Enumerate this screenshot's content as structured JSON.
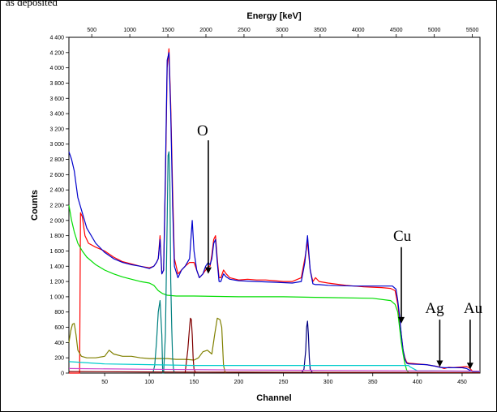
{
  "top_caption": "as deposited",
  "chart_data": {
    "type": "line",
    "xlabel": "Channel",
    "ylabel": "Counts",
    "x2label": "Energy [keV]",
    "xlim": [
      10,
      470
    ],
    "ylim": [
      0,
      4400
    ],
    "x2lim": [
      200,
      5600
    ],
    "x_ticks": [
      50,
      100,
      150,
      200,
      250,
      300,
      350,
      400,
      450
    ],
    "y_ticks": [
      0,
      200,
      400,
      600,
      800,
      1000,
      1200,
      1400,
      1600,
      1800,
      2000,
      2200,
      2400,
      2600,
      2800,
      3000,
      3200,
      3400,
      3600,
      3800,
      4000,
      4200,
      4400
    ],
    "x2_ticks": [
      500,
      1000,
      1500,
      2000,
      2500,
      3000,
      3500,
      4000,
      4500,
      5000,
      5500
    ],
    "grid": false,
    "series": [
      {
        "color": "#ff0000",
        "x": [
          10,
          22,
          23,
          25,
          28,
          32,
          40,
          50,
          60,
          70,
          80,
          90,
          100,
          105,
          108,
          110,
          112,
          114,
          116,
          118,
          120,
          122,
          124,
          126,
          128,
          132,
          136,
          140,
          145,
          148,
          150,
          153,
          156,
          160,
          163,
          166,
          168,
          170,
          172,
          174,
          176,
          178,
          180,
          183,
          186,
          190,
          200,
          210,
          220,
          230,
          240,
          250,
          260,
          270,
          274,
          277,
          280,
          283,
          286,
          290,
          300,
          320,
          340,
          360,
          370,
          375,
          378,
          380,
          382,
          384,
          386,
          388,
          390,
          400,
          410,
          420,
          425,
          430,
          435,
          440,
          445,
          450,
          455,
          458,
          462,
          470
        ],
        "y": [
          0,
          0,
          2100,
          2050,
          1800,
          1700,
          1650,
          1600,
          1520,
          1460,
          1430,
          1400,
          1380,
          1400,
          1450,
          1500,
          1800,
          1300,
          1350,
          2500,
          4000,
          4250,
          3500,
          2400,
          1500,
          1300,
          1350,
          1400,
          1450,
          1450,
          1450,
          1350,
          1250,
          1300,
          1350,
          1400,
          1400,
          1550,
          1750,
          1800,
          1500,
          1250,
          1250,
          1350,
          1300,
          1250,
          1220,
          1230,
          1220,
          1220,
          1210,
          1200,
          1200,
          1250,
          1500,
          1720,
          1350,
          1200,
          1250,
          1200,
          1180,
          1150,
          1130,
          1120,
          1110,
          1080,
          900,
          700,
          500,
          300,
          200,
          140,
          130,
          120,
          110,
          90,
          80,
          60,
          75,
          70,
          75,
          80,
          85,
          70,
          20,
          10
        ]
      },
      {
        "color": "#0000cc",
        "x": [
          10,
          13,
          16,
          20,
          25,
          30,
          40,
          50,
          60,
          70,
          80,
          90,
          100,
          105,
          108,
          110,
          112,
          114,
          116,
          118,
          120,
          122,
          124,
          126,
          128,
          132,
          136,
          140,
          145,
          148,
          150,
          153,
          156,
          160,
          163,
          166,
          168,
          170,
          172,
          174,
          176,
          178,
          180,
          183,
          186,
          190,
          200,
          220,
          240,
          260,
          270,
          274,
          277,
          280,
          283,
          286,
          290,
          300,
          330,
          360,
          372,
          376,
          378,
          380,
          382,
          384,
          386,
          388,
          390,
          400,
          410,
          420,
          425,
          430,
          440,
          450,
          455,
          458,
          462,
          470
        ],
        "y": [
          2900,
          2800,
          2650,
          2300,
          2100,
          1900,
          1700,
          1580,
          1500,
          1450,
          1420,
          1400,
          1370,
          1400,
          1450,
          1500,
          1750,
          1300,
          1350,
          2600,
          4100,
          4200,
          3400,
          2200,
          1400,
          1250,
          1350,
          1400,
          1500,
          2000,
          1600,
          1350,
          1250,
          1300,
          1400,
          1450,
          1420,
          1500,
          1700,
          1750,
          1450,
          1200,
          1200,
          1300,
          1260,
          1230,
          1210,
          1200,
          1190,
          1180,
          1200,
          1450,
          1800,
          1350,
          1170,
          1160,
          1160,
          1150,
          1140,
          1140,
          1140,
          1100,
          950,
          750,
          500,
          300,
          180,
          130,
          120,
          115,
          110,
          90,
          75,
          70,
          70,
          70,
          60,
          40,
          15,
          10
        ]
      },
      {
        "color": "#00dd00",
        "x": [
          10,
          13,
          16,
          20,
          25,
          30,
          40,
          50,
          60,
          70,
          80,
          90,
          100,
          105,
          110,
          115,
          120,
          130,
          150,
          200,
          250,
          300,
          350,
          370,
          375,
          378,
          380,
          382,
          384,
          386,
          388,
          390
        ],
        "y": [
          2200,
          2000,
          1850,
          1700,
          1600,
          1520,
          1420,
          1350,
          1300,
          1260,
          1230,
          1200,
          1180,
          1150,
          1080,
          1040,
          1020,
          1010,
          1010,
          1000,
          1000,
          990,
          980,
          950,
          900,
          800,
          600,
          400,
          250,
          120,
          40,
          10
        ]
      },
      {
        "color": "#808000",
        "x": [
          10,
          12,
          14,
          16,
          18,
          20,
          24,
          30,
          40,
          50,
          55,
          60,
          70,
          80,
          90,
          100,
          105,
          110,
          120,
          130,
          140,
          145,
          150,
          155,
          160,
          165,
          170,
          173,
          176,
          179,
          181,
          183,
          185
        ],
        "y": [
          400,
          550,
          640,
          650,
          500,
          300,
          220,
          200,
          200,
          220,
          300,
          250,
          220,
          220,
          200,
          190,
          190,
          190,
          190,
          180,
          180,
          175,
          170,
          200,
          280,
          300,
          250,
          500,
          720,
          700,
          600,
          100,
          0
        ]
      },
      {
        "color": "#008080",
        "x": [
          104,
          106,
          108,
          110,
          112,
          114,
          115,
          116,
          118,
          120,
          121,
          122,
          123,
          124,
          125,
          126,
          127,
          128
        ],
        "y": [
          0,
          100,
          400,
          800,
          950,
          500,
          0,
          0,
          500,
          2000,
          2850,
          2900,
          2500,
          1200,
          600,
          200,
          50,
          0
        ]
      },
      {
        "color": "#800000",
        "x": [
          140,
          143,
          145,
          146,
          147,
          148,
          149,
          150,
          152
        ],
        "y": [
          0,
          300,
          600,
          720,
          700,
          500,
          200,
          50,
          0
        ]
      },
      {
        "color": "#000080",
        "x": [
          270,
          273,
          275,
          276,
          277,
          278,
          279,
          280,
          283
        ],
        "y": [
          0,
          50,
          300,
          600,
          680,
          500,
          200,
          50,
          0
        ]
      },
      {
        "color": "#00cccc",
        "x": [
          10,
          50,
          100,
          150,
          200,
          250,
          300,
          350,
          380,
          390,
          392,
          400,
          450,
          470
        ],
        "y": [
          150,
          120,
          110,
          100,
          100,
          100,
          100,
          100,
          100,
          100,
          80,
          30,
          25,
          20
        ]
      },
      {
        "color": "#cc44cc",
        "x": [
          10,
          100,
          200,
          300,
          400,
          470
        ],
        "y": [
          60,
          50,
          40,
          35,
          30,
          25
        ]
      },
      {
        "color": "#880000",
        "x": [
          10,
          100,
          200,
          300,
          400,
          470
        ],
        "y": [
          20,
          15,
          12,
          10,
          8,
          5
        ]
      }
    ],
    "annotations": [
      {
        "text": "O",
        "x": 166,
        "y": 1300
      },
      {
        "text": "Cu",
        "x": 382,
        "y": 650
      },
      {
        "text": "Ag",
        "x": 425,
        "y": 80
      },
      {
        "text": "Au",
        "x": 459,
        "y": 50
      }
    ]
  }
}
